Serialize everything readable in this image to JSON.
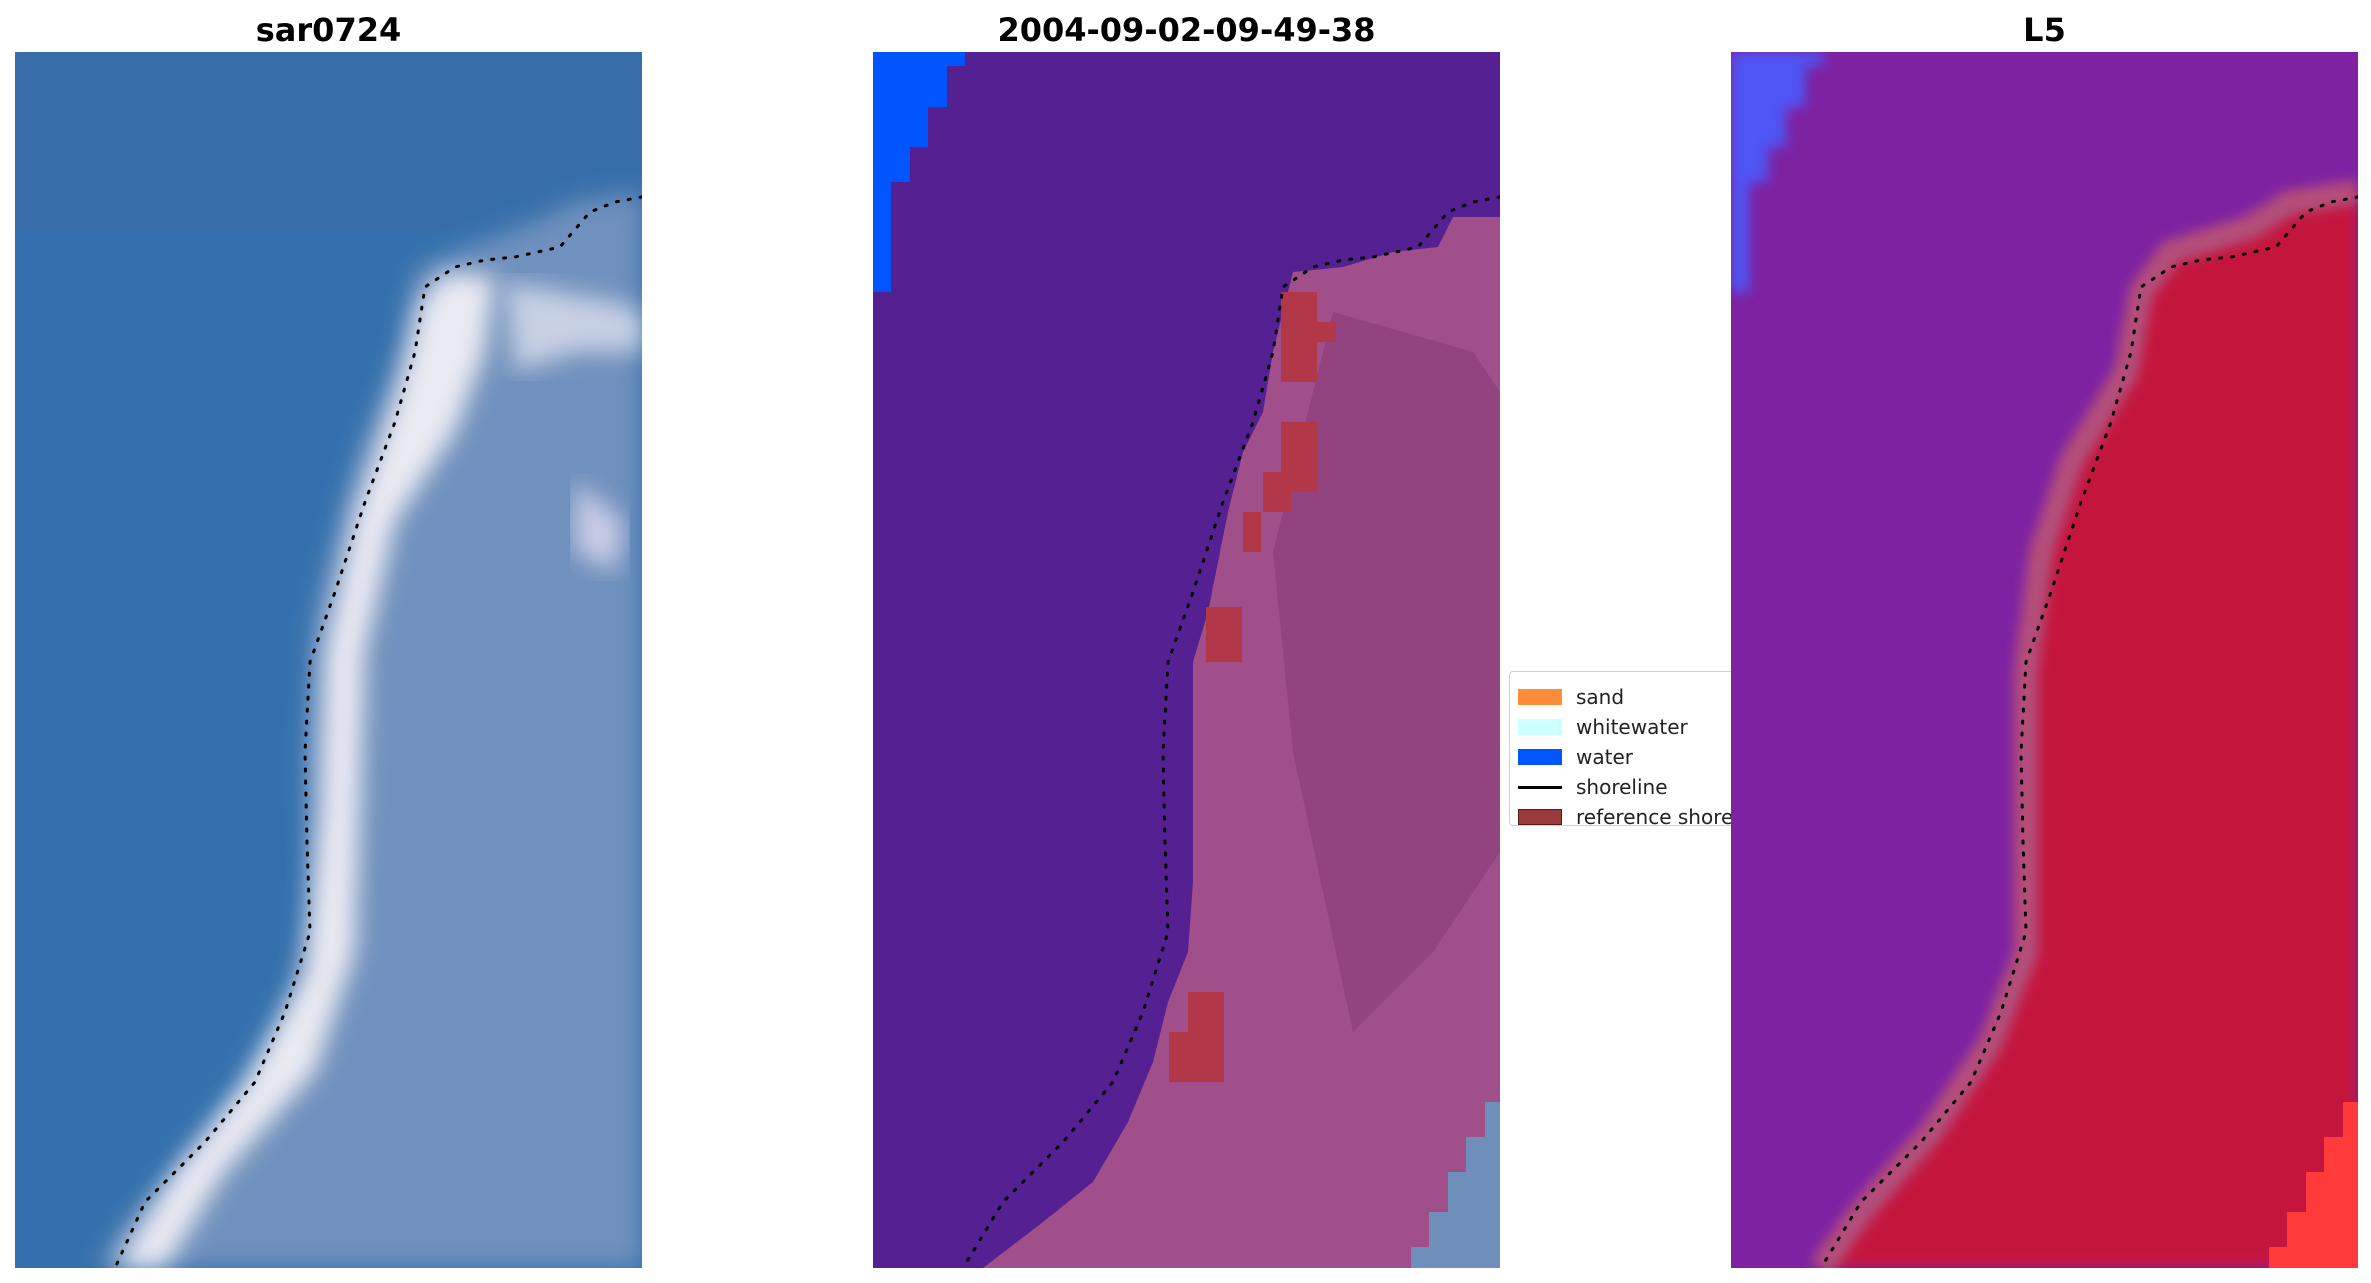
{
  "panels": [
    {
      "title": "sar0724"
    },
    {
      "title": "2004-09-02-09-49-38"
    },
    {
      "title": "L5"
    }
  ],
  "legend": {
    "items": [
      {
        "label": "sand",
        "color": "#ff8c3a",
        "kind": "patch"
      },
      {
        "label": "whitewater",
        "color": "#ccfffe",
        "kind": "patch"
      },
      {
        "label": "water",
        "color": "#0055ff",
        "kind": "patch"
      },
      {
        "label": "shoreline",
        "color": "#000000",
        "kind": "line"
      },
      {
        "label": "reference shoreline",
        "color": "#9a3a3a",
        "kind": "patch"
      }
    ]
  },
  "colors": {
    "rgb_sea": "#3370ad",
    "rgb_surf": "#e8e8f0",
    "rgb_land": "#6f8fbb",
    "class_sea": "#552192",
    "class_water": "#0055ff",
    "class_land": "#a04f8a",
    "class_reference": "#b23748",
    "class_land_grey": "#6f8fbb",
    "mndwi_sea": "#7a1fa0",
    "mndwi_land": "#c4163c",
    "mndwi_water": "#4a5cff",
    "mndwi_hot": "#ff3a3a"
  }
}
